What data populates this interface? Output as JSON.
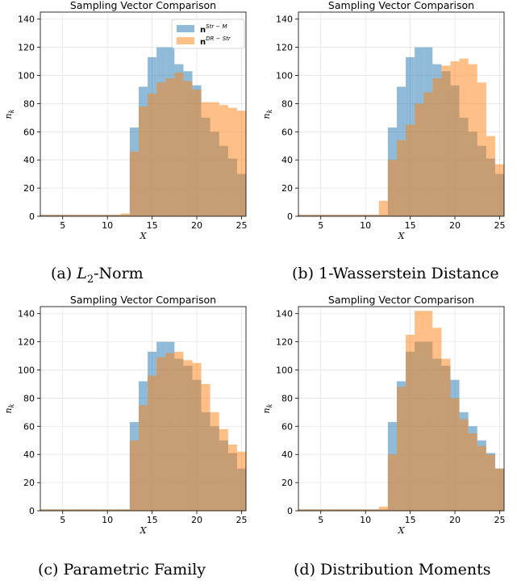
{
  "figures": [
    {
      "caption_label": "(a)",
      "caption_text": "L",
      "caption_sub": "2",
      "caption_suffix": "-Norm"
    },
    {
      "caption_label": "(b)",
      "caption_text": "1-Wasserstein Distance",
      "caption_sub": "",
      "caption_suffix": ""
    },
    {
      "caption_label": "(c)",
      "caption_text": "Parametric Family",
      "caption_sub": "",
      "caption_suffix": ""
    },
    {
      "caption_label": "(d)",
      "caption_text": "Distribution Moments",
      "caption_sub": "",
      "caption_suffix": ""
    }
  ],
  "colors": {
    "blue": "#1f77b4",
    "orange": "#ff7f0e",
    "grid": "#e6e6e6"
  },
  "chart_data": [
    {
      "type": "bar",
      "title": "Sampling Vector Comparison",
      "xlabel": "X",
      "ylabel": "n_k",
      "xlim": [
        2.5,
        25.5
      ],
      "ylim": [
        0,
        145
      ],
      "xticks": [
        5,
        10,
        15,
        20,
        25
      ],
      "yticks": [
        0,
        20,
        40,
        60,
        80,
        100,
        120,
        140
      ],
      "grid": true,
      "legend_position": "top-right",
      "legend": [
        {
          "base": "n",
          "sup": "Str − M"
        },
        {
          "base": "n",
          "sup": "DR − Str"
        }
      ],
      "x": [
        3,
        4,
        5,
        6,
        7,
        8,
        9,
        10,
        11,
        12,
        13,
        14,
        15,
        16,
        17,
        18,
        19,
        20,
        21,
        22,
        23,
        24,
        25
      ],
      "series": [
        {
          "values": [
            1,
            1,
            1,
            1,
            1,
            1,
            1,
            1,
            1,
            1,
            63,
            92,
            113,
            120,
            120,
            108,
            103,
            93,
            70,
            60,
            50,
            41,
            30
          ]
        },
        {
          "values": [
            1,
            1,
            1,
            1,
            1,
            1,
            1,
            1,
            1,
            2,
            46,
            78,
            87,
            95,
            98,
            102,
            96,
            90,
            81,
            81,
            79,
            77,
            75
          ]
        }
      ]
    },
    {
      "type": "bar",
      "title": "Sampling Vector Comparison",
      "xlabel": "X",
      "ylabel": "n_k",
      "xlim": [
        2.5,
        25.5
      ],
      "ylim": [
        0,
        145
      ],
      "xticks": [
        5,
        10,
        15,
        20,
        25
      ],
      "yticks": [
        0,
        20,
        40,
        60,
        80,
        100,
        120,
        140
      ],
      "grid": true,
      "x": [
        3,
        4,
        5,
        6,
        7,
        8,
        9,
        10,
        11,
        12,
        13,
        14,
        15,
        16,
        17,
        18,
        19,
        20,
        21,
        22,
        23,
        24,
        25
      ],
      "series": [
        {
          "values": [
            1,
            1,
            1,
            1,
            1,
            1,
            1,
            1,
            1,
            1,
            63,
            92,
            113,
            120,
            120,
            108,
            103,
            93,
            70,
            60,
            50,
            41,
            30
          ]
        },
        {
          "values": [
            1,
            1,
            1,
            1,
            1,
            1,
            1,
            1,
            1,
            11,
            40,
            54,
            65,
            80,
            88,
            98,
            107,
            110,
            112,
            108,
            95,
            57,
            37
          ]
        }
      ]
    },
    {
      "type": "bar",
      "title": "Sampling Vector Comparison",
      "xlabel": "X",
      "ylabel": "n_k",
      "xlim": [
        2.5,
        25.5
      ],
      "ylim": [
        0,
        145
      ],
      "xticks": [
        5,
        10,
        15,
        20,
        25
      ],
      "yticks": [
        0,
        20,
        40,
        60,
        80,
        100,
        120,
        140
      ],
      "grid": true,
      "x": [
        3,
        4,
        5,
        6,
        7,
        8,
        9,
        10,
        11,
        12,
        13,
        14,
        15,
        16,
        17,
        18,
        19,
        20,
        21,
        22,
        23,
        24,
        25
      ],
      "series": [
        {
          "values": [
            1,
            1,
            1,
            1,
            1,
            1,
            1,
            1,
            1,
            1,
            63,
            92,
            113,
            120,
            120,
            108,
            103,
            93,
            70,
            60,
            50,
            41,
            30
          ]
        },
        {
          "values": [
            1,
            1,
            1,
            1,
            1,
            1,
            1,
            1,
            1,
            1,
            50,
            75,
            96,
            109,
            112,
            113,
            107,
            105,
            90,
            70,
            58,
            47,
            42
          ]
        }
      ]
    },
    {
      "type": "bar",
      "title": "Sampling Vector Comparison",
      "xlabel": "X",
      "ylabel": "n_k",
      "xlim": [
        2.5,
        25.5
      ],
      "ylim": [
        0,
        145
      ],
      "xticks": [
        5,
        10,
        15,
        20,
        25
      ],
      "yticks": [
        0,
        20,
        40,
        60,
        80,
        100,
        120,
        140
      ],
      "grid": true,
      "x": [
        3,
        4,
        5,
        6,
        7,
        8,
        9,
        10,
        11,
        12,
        13,
        14,
        15,
        16,
        17,
        18,
        19,
        20,
        21,
        22,
        23,
        24,
        25
      ],
      "series": [
        {
          "values": [
            1,
            1,
            1,
            1,
            1,
            1,
            1,
            1,
            1,
            1,
            63,
            92,
            113,
            120,
            120,
            108,
            103,
            93,
            70,
            60,
            50,
            41,
            30
          ]
        },
        {
          "values": [
            1,
            1,
            1,
            1,
            1,
            1,
            1,
            1,
            1,
            3,
            40,
            88,
            125,
            142,
            142,
            130,
            108,
            80,
            65,
            55,
            46,
            40,
            30
          ]
        }
      ]
    }
  ]
}
